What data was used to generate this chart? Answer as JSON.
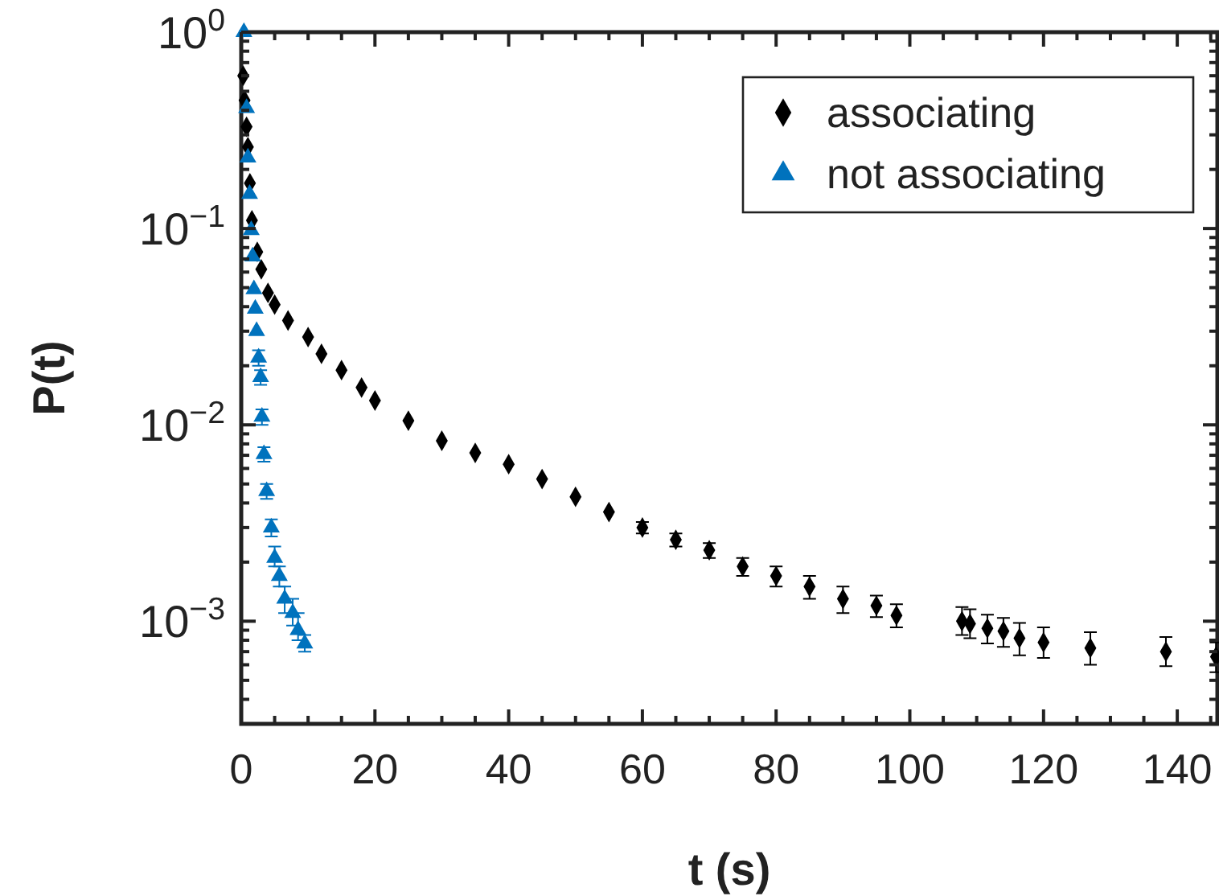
{
  "chart_data": {
    "type": "scatter",
    "xlabel": "t (s)",
    "ylabel": "P(t)",
    "log": "y",
    "legend": "top right",
    "grid": false,
    "xlim": [
      0,
      146
    ],
    "ylim": [
      0.0003,
      1
    ],
    "xticks": [
      0,
      {
        "value": 5,
        "label": null
      },
      {
        "value": 10,
        "label": null
      },
      {
        "value": 15,
        "label": null
      },
      20,
      {
        "value": 25,
        "label": null
      },
      {
        "value": 30,
        "label": null
      },
      {
        "value": 35,
        "label": null
      },
      40,
      {
        "value": 45,
        "label": null
      },
      {
        "value": 50,
        "label": null
      },
      {
        "value": 55,
        "label": null
      },
      60,
      {
        "value": 65,
        "label": null
      },
      {
        "value": 70,
        "label": null
      },
      {
        "value": 75,
        "label": null
      },
      80,
      {
        "value": 85,
        "label": null
      },
      {
        "value": 90,
        "label": null
      },
      {
        "value": 95,
        "label": null
      },
      100,
      {
        "value": 105,
        "label": null
      },
      {
        "value": 110,
        "label": null
      },
      {
        "value": 115,
        "label": null
      },
      120,
      {
        "value": 125,
        "label": null
      },
      {
        "value": 130,
        "label": null
      },
      {
        "value": 135,
        "label": null
      },
      140,
      {
        "value": 145,
        "label": null
      }
    ],
    "yticks": [
      {
        "value": 1,
        "label": "10$^{0}$"
      },
      {
        "value": 0.1,
        "label": "10$^{−1}$"
      },
      {
        "value": 0.01,
        "label": "10$^{−2}$"
      },
      {
        "value": 0.001,
        "label": "10$^{−3}$"
      },
      {
        "value": 0.0003,
        "label": null
      },
      {
        "value": 0.0004,
        "label": null
      },
      {
        "value": 0.0005,
        "label": null
      },
      {
        "value": 0.0006,
        "label": null
      },
      {
        "value": 0.0007,
        "label": null
      },
      {
        "value": 0.0008,
        "label": null
      },
      {
        "value": 0.0009,
        "label": null
      },
      {
        "value": 0.002,
        "label": null
      },
      {
        "value": 0.003,
        "label": null
      },
      {
        "value": 0.004,
        "label": null
      },
      {
        "value": 0.005,
        "label": null
      },
      {
        "value": 0.006,
        "label": null
      },
      {
        "value": 0.007,
        "label": null
      },
      {
        "value": 0.008,
        "label": null
      },
      {
        "value": 0.009,
        "label": null
      },
      {
        "value": 0.02,
        "label": null
      },
      {
        "value": 0.03,
        "label": null
      },
      {
        "value": 0.04,
        "label": null
      },
      {
        "value": 0.05,
        "label": null
      },
      {
        "value": 0.06,
        "label": null
      },
      {
        "value": 0.07,
        "label": null
      },
      {
        "value": 0.08,
        "label": null
      },
      {
        "value": 0.09,
        "label": null
      },
      {
        "value": 0.2,
        "label": null
      },
      {
        "value": 0.3,
        "label": null
      },
      {
        "value": 0.4,
        "label": null
      },
      {
        "value": 0.5,
        "label": null
      },
      {
        "value": 0.6,
        "label": null
      },
      {
        "value": 0.7,
        "label": null
      },
      {
        "value": 0.8,
        "label": null
      },
      {
        "value": 0.9,
        "label": null
      }
    ],
    "series": [
      {
        "name": "associating",
        "color": "#000000",
        "marker": "diamond",
        "x": [
          0.3,
          0.5,
          0.8,
          1.0,
          1.3,
          1.6,
          2.4,
          3,
          4,
          5,
          7,
          10,
          12,
          15,
          18,
          20,
          25,
          30,
          35,
          40,
          45,
          50,
          55,
          60,
          65,
          70,
          75,
          80,
          85,
          90,
          95,
          98,
          107.8,
          109,
          111.6,
          114,
          116.4,
          120,
          127,
          138.3,
          145.8
        ],
        "values": [
          0.6,
          0.45,
          0.33,
          0.26,
          0.17,
          0.11,
          0.076,
          0.062,
          0.047,
          0.041,
          0.034,
          0.028,
          0.023,
          0.019,
          0.0155,
          0.0133,
          0.0105,
          0.0083,
          0.0072,
          0.0063,
          0.0053,
          0.0043,
          0.0036,
          0.003,
          0.0026,
          0.0023,
          0.0019,
          0.0017,
          0.0015,
          0.0013,
          0.0012,
          0.00107,
          0.001,
          0.00097,
          0.00092,
          0.00089,
          0.00082,
          0.00078,
          0.00073,
          0.0007,
          0.00066
        ],
        "errors": [
          null,
          null,
          null,
          null,
          null,
          null,
          null,
          null,
          null,
          null,
          null,
          null,
          null,
          null,
          null,
          null,
          null,
          null,
          null,
          null,
          null,
          null,
          null,
          [
            0.0028,
            0.0032
          ],
          [
            0.0024,
            0.0028
          ],
          [
            0.0021,
            0.0025
          ],
          [
            0.0017,
            0.0021
          ],
          [
            0.0015,
            0.0019
          ],
          [
            0.0013,
            0.0017
          ],
          [
            0.0011,
            0.0015
          ],
          [
            0.00105,
            0.00135
          ],
          [
            0.00093,
            0.00122
          ],
          [
            0.00085,
            0.00118
          ],
          [
            0.00082,
            0.00115
          ],
          [
            0.00077,
            0.00108
          ],
          [
            0.00074,
            0.00104
          ],
          [
            0.00067,
            0.00098
          ],
          [
            0.00065,
            0.00093
          ],
          [
            0.0006,
            0.00088
          ],
          [
            0.00059,
            0.00083
          ],
          [
            0.00055,
            0.00078
          ]
        ]
      },
      {
        "name": "not associating",
        "color": "#0072bd",
        "marker": "triangle",
        "x": [
          0.4,
          0.8,
          1.0,
          1.25,
          1.5,
          1.7,
          1.9,
          2.1,
          2.3,
          2.6,
          2.9,
          3.1,
          3.4,
          3.8,
          4.5,
          5,
          5.7,
          6.5,
          7.7,
          8.5,
          9.5
        ],
        "values": [
          1.0,
          0.41,
          0.23,
          0.15,
          0.098,
          0.072,
          0.049,
          0.039,
          0.03,
          0.022,
          0.0175,
          0.011,
          0.0071,
          0.0046,
          0.003,
          0.0021,
          0.0017,
          0.0013,
          0.0011,
          0.0009,
          0.00077
        ],
        "errors": [
          null,
          null,
          null,
          null,
          null,
          null,
          null,
          null,
          null,
          [
            0.02,
            0.024
          ],
          [
            0.016,
            0.019
          ],
          [
            0.01,
            0.012
          ],
          [
            0.0065,
            0.0077
          ],
          [
            0.0042,
            0.005
          ],
          [
            0.0027,
            0.0033
          ],
          [
            0.0019,
            0.0024
          ],
          [
            0.0015,
            0.0019
          ],
          [
            0.0011,
            0.0015
          ],
          [
            0.00095,
            0.0013
          ],
          [
            0.0008,
            0.0011
          ],
          [
            0.0007,
            0.00085
          ]
        ]
      }
    ]
  }
}
